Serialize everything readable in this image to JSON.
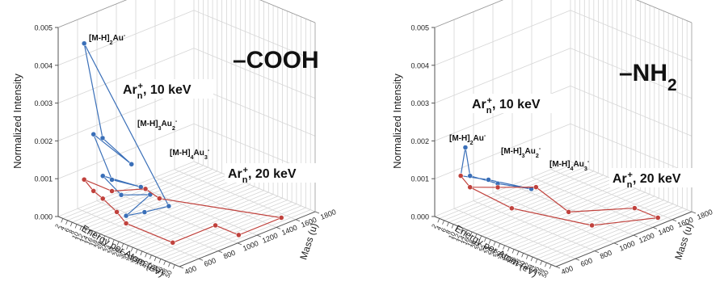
{
  "chart_data": [
    {
      "type": "line",
      "panel_label": "–COOH",
      "xlabel": "Energy per Atom (eV)",
      "ylabel": "Normalized Intensity",
      "zlabel": "Mass (u)",
      "x_ticks": [
        2,
        4,
        6,
        8,
        10,
        12,
        14,
        16,
        18,
        20,
        22,
        24,
        26,
        28,
        30,
        32,
        34,
        36,
        38,
        40,
        42,
        44,
        46,
        48,
        50
      ],
      "y_ticks": [
        0.0,
        0.001,
        0.002,
        0.003,
        0.004,
        0.005
      ],
      "y_tick_labels": [
        "0.000",
        "0.001",
        "0.002",
        "0.003",
        "0.004",
        "0.005"
      ],
      "z_ticks": [
        400,
        600,
        800,
        1000,
        1200,
        1400,
        1600,
        1800
      ],
      "xlim": [
        0,
        52
      ],
      "ylim": [
        0,
        0.005
      ],
      "zlim": [
        400,
        1800
      ],
      "series": [
        {
          "name": "Arn+, 10 keV",
          "legend_main": "Ar",
          "legend_sub": "n",
          "legend_sup": "+",
          "legend_tail": ", 10 keV",
          "color": "#3a6fb8",
          "points": [
            {
              "x": 2,
              "z": 620,
              "y": 0.0044
            },
            {
              "x": 2,
              "z": 810,
              "y": 0.0017
            },
            {
              "x": 4,
              "z": 1060,
              "y": 0.0008
            },
            {
              "x": 6,
              "z": 620,
              "y": 0.0021
            },
            {
              "x": 6,
              "z": 810,
              "y": 0.0007
            },
            {
              "x": 8,
              "z": 1060,
              "y": 0.0003
            },
            {
              "x": 10,
              "z": 620,
              "y": 0.0011
            },
            {
              "x": 10,
              "z": 810,
              "y": 0.0004
            },
            {
              "x": 12,
              "z": 1060,
              "y": 0.0002
            },
            {
              "x": 20,
              "z": 620,
              "y": 0.0003
            },
            {
              "x": 20,
              "z": 810,
              "y": 0.0002
            },
            {
              "x": 20,
              "z": 1060,
              "y": 0.0001
            },
            {
              "x": 2,
              "z": 620,
              "y": 0.0044
            }
          ]
        },
        {
          "name": "Arn+, 20 keV",
          "legend_main": "Ar",
          "legend_sub": "n",
          "legend_sup": "+",
          "legend_tail": ", 20 keV",
          "color": "#c0413c",
          "points": [
            {
              "x": 2,
              "z": 620,
              "y": 0.0008
            },
            {
              "x": 6,
              "z": 620,
              "y": 0.0006
            },
            {
              "x": 10,
              "z": 620,
              "y": 0.0005
            },
            {
              "x": 16,
              "z": 620,
              "y": 0.0003
            },
            {
              "x": 20,
              "z": 620,
              "y": 0.0001
            },
            {
              "x": 40,
              "z": 620,
              "y": 0.0001
            },
            {
              "x": 40,
              "z": 1060,
              "y": 0.0001
            },
            {
              "x": 50,
              "z": 1060,
              "y": 0.0001
            },
            {
              "x": 50,
              "z": 1500,
              "y": 0.0001
            },
            {
              "x": 16,
              "z": 1060,
              "y": 0.0002
            },
            {
              "x": 10,
              "z": 1060,
              "y": 0.0003
            },
            {
              "x": 6,
              "z": 810,
              "y": 0.0004
            },
            {
              "x": 2,
              "z": 620,
              "y": 0.0008
            }
          ]
        }
      ],
      "annotations": [
        {
          "parts": [
            [
              "[M-H]",
              "n"
            ],
            [
              "2",
              "sub"
            ],
            [
              "Au",
              "n"
            ],
            [
              "-",
              "sup"
            ]
          ]
        },
        {
          "parts": [
            [
              "[M-H]",
              "n"
            ],
            [
              "3",
              "sub"
            ],
            [
              "Au",
              "n"
            ],
            [
              "2",
              "sub"
            ],
            [
              "-",
              "sup"
            ]
          ]
        },
        {
          "parts": [
            [
              "[M-H]",
              "n"
            ],
            [
              "4",
              "sub"
            ],
            [
              "Au",
              "n"
            ],
            [
              "3",
              "sub"
            ],
            [
              "-",
              "sup"
            ]
          ]
        }
      ]
    },
    {
      "type": "line",
      "panel_label": "–NH",
      "panel_label_sub": "2",
      "xlabel": "Energy per Atom (eV)",
      "ylabel": "Normalized Intensity",
      "zlabel": "Mass (u)",
      "x_ticks": [
        2,
        4,
        6,
        8,
        10,
        12,
        14,
        16,
        18,
        20,
        22,
        24,
        26,
        28,
        30,
        32,
        34,
        36,
        38,
        40,
        42,
        44,
        46,
        48,
        50
      ],
      "y_ticks": [
        0.0,
        0.001,
        0.002,
        0.003,
        0.004,
        0.005
      ],
      "y_tick_labels": [
        "0.000",
        "0.001",
        "0.002",
        "0.003",
        "0.004",
        "0.005"
      ],
      "z_ticks": [
        400,
        600,
        800,
        1000,
        1200,
        1400,
        1600,
        1800
      ],
      "xlim": [
        0,
        52
      ],
      "ylim": [
        0,
        0.005
      ],
      "zlim": [
        400,
        1800
      ],
      "series": [
        {
          "name": "Arn+, 10 keV",
          "legend_main": "Ar",
          "legend_sub": "n",
          "legend_sup": "+",
          "legend_tail": ", 10 keV",
          "color": "#3a6fb8",
          "points": [
            {
              "x": 2,
              "z": 620,
              "y": 0.0009
            },
            {
              "x": 4,
              "z": 620,
              "y": 0.0017
            },
            {
              "x": 6,
              "z": 620,
              "y": 0.001
            },
            {
              "x": 10,
              "z": 810,
              "y": 0.0007
            },
            {
              "x": 14,
              "z": 1060,
              "y": 0.0004
            },
            {
              "x": 6,
              "z": 810,
              "y": 0.0007
            },
            {
              "x": 2,
              "z": 620,
              "y": 0.0009
            }
          ]
        },
        {
          "name": "Arn+, 20 keV",
          "legend_main": "Ar",
          "legend_sub": "n",
          "legend_sup": "+",
          "legend_tail": ", 20 keV",
          "color": "#c0413c",
          "points": [
            {
              "x": 2,
              "z": 620,
              "y": 0.0009
            },
            {
              "x": 6,
              "z": 620,
              "y": 0.0007
            },
            {
              "x": 10,
              "z": 810,
              "y": 0.0006
            },
            {
              "x": 16,
              "z": 1060,
              "y": 0.0005
            },
            {
              "x": 30,
              "z": 1060,
              "y": 0.0002
            },
            {
              "x": 40,
              "z": 1500,
              "y": 0.0001
            },
            {
              "x": 50,
              "z": 1500,
              "y": 0.0001
            },
            {
              "x": 40,
              "z": 1060,
              "y": 0.0001
            },
            {
              "x": 16,
              "z": 810,
              "y": 0.0002
            },
            {
              "x": 6,
              "z": 620,
              "y": 0.0007
            }
          ]
        }
      ],
      "annotations": [
        {
          "parts": [
            [
              "[M-H]",
              "n"
            ],
            [
              "2",
              "sub"
            ],
            [
              "Au",
              "n"
            ],
            [
              "-",
              "sup"
            ]
          ]
        },
        {
          "parts": [
            [
              "[M-H]",
              "n"
            ],
            [
              "3",
              "sub"
            ],
            [
              "Au",
              "n"
            ],
            [
              "2",
              "sub"
            ],
            [
              "-",
              "sup"
            ]
          ]
        },
        {
          "parts": [
            [
              "[M-H]",
              "n"
            ],
            [
              "4",
              "sub"
            ],
            [
              "Au",
              "n"
            ],
            [
              "3",
              "sub"
            ],
            [
              "-",
              "sup"
            ]
          ]
        }
      ]
    }
  ]
}
